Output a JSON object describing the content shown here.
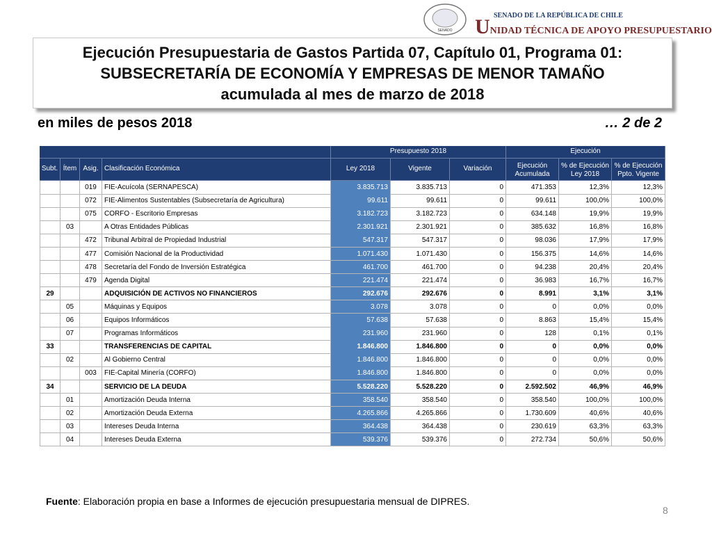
{
  "header": {
    "seal_text": "SENADO",
    "org_line1": "SENADO DE LA REPÚBLICA DE CHILE",
    "org_line2": "UNIDAD TÉCNICA DE APOYO PRESUPUESTARIO"
  },
  "title": [
    "Ejecución Presupuestaria de Gastos Partida 07, Capítulo 01, Programa 01:",
    "SUBSECRETARÍA DE ECONOMÍA Y EMPRESAS DE MENOR TAMAÑO",
    "acumulada al mes de marzo de 2018"
  ],
  "subtitle": "en miles de pesos 2018",
  "page_part": "… 2 de 2",
  "table": {
    "groups": [
      "Presupuesto 2018",
      "Ejecución"
    ],
    "columns": [
      [
        "Subt."
      ],
      [
        "Ítem"
      ],
      [
        "Asig."
      ],
      [
        "Clasificación Económica"
      ],
      [
        "Ley 2018"
      ],
      [
        "Vigente"
      ],
      [
        "Variación"
      ],
      [
        "Ejecución",
        "Acumulada"
      ],
      [
        "% de Ejecución",
        "Ley 2018"
      ],
      [
        "% de Ejecución",
        "Ppto. Vigente"
      ]
    ],
    "rows": [
      {
        "cells": [
          null,
          null,
          "019",
          "FIE-Acuícola (SERNAPESCA)",
          "3.835.713",
          "3.835.713",
          "0",
          "471.353",
          "12,3%",
          "12,3%"
        ]
      },
      {
        "cells": [
          null,
          null,
          "072",
          "FIE-Alimentos Sustentables (Subsecretaría de Agricultura)",
          "99.611",
          "99.611",
          "0",
          "99.611",
          "100,0%",
          "100,0%"
        ]
      },
      {
        "cells": [
          null,
          null,
          "075",
          "CORFO - Escritorio Empresas",
          "3.182.723",
          "3.182.723",
          "0",
          "634.148",
          "19,9%",
          "19,9%"
        ]
      },
      {
        "cells": [
          null,
          "03",
          null,
          "A Otras Entidades Públicas",
          "2.301.921",
          "2.301.921",
          "0",
          "385.632",
          "16,8%",
          "16,8%"
        ]
      },
      {
        "cells": [
          null,
          null,
          "472",
          "Tribunal Arbitral de Propiedad Industrial",
          "547.317",
          "547.317",
          "0",
          "98.036",
          "17,9%",
          "17,9%"
        ]
      },
      {
        "cells": [
          null,
          null,
          "477",
          "Comisión Nacional de la Productividad",
          "1.071.430",
          "1.071.430",
          "0",
          "156.375",
          "14,6%",
          "14,6%"
        ]
      },
      {
        "cells": [
          null,
          null,
          "478",
          "Secretaría del Fondo de Inversión Estratégica",
          "461.700",
          "461.700",
          "0",
          "94.238",
          "20,4%",
          "20,4%"
        ]
      },
      {
        "cells": [
          null,
          null,
          "479",
          "Agenda Digital",
          "221.474",
          "221.474",
          "0",
          "36.983",
          "16,7%",
          "16,7%"
        ]
      },
      {
        "cells": [
          "29",
          null,
          null,
          "ADQUISICIÓN DE ACTIVOS NO FINANCIEROS",
          "292.676",
          "292.676",
          "0",
          "8.991",
          "3,1%",
          "3,1%"
        ],
        "bold": true
      },
      {
        "cells": [
          null,
          "05",
          null,
          "Máquinas y Equipos",
          "3.078",
          "3.078",
          "0",
          "0",
          "0,0%",
          "0,0%"
        ]
      },
      {
        "cells": [
          null,
          "06",
          null,
          "Equipos Informáticos",
          "57.638",
          "57.638",
          "0",
          "8.863",
          "15,4%",
          "15,4%"
        ]
      },
      {
        "cells": [
          null,
          "07",
          null,
          "Programas Informáticos",
          "231.960",
          "231.960",
          "0",
          "128",
          "0,1%",
          "0,1%"
        ]
      },
      {
        "cells": [
          "33",
          null,
          null,
          "TRANSFERENCIAS DE CAPITAL",
          "1.846.800",
          "1.846.800",
          "0",
          "0",
          "0,0%",
          "0,0%"
        ],
        "bold": true
      },
      {
        "cells": [
          null,
          "02",
          null,
          "Al Gobierno Central",
          "1.846.800",
          "1.846.800",
          "0",
          "0",
          "0,0%",
          "0,0%"
        ]
      },
      {
        "cells": [
          null,
          null,
          "003",
          "FIE-Capital Minería (CORFO)",
          "1.846.800",
          "1.846.800",
          "0",
          "0",
          "0,0%",
          "0,0%"
        ]
      },
      {
        "cells": [
          "34",
          null,
          null,
          "SERVICIO DE LA DEUDA",
          "5.528.220",
          "5.528.220",
          "0",
          "2.592.502",
          "46,9%",
          "46,9%"
        ],
        "bold": true
      },
      {
        "cells": [
          null,
          "01",
          null,
          "Amortización Deuda Interna",
          "358.540",
          "358.540",
          "0",
          "358.540",
          "100,0%",
          "100,0%"
        ]
      },
      {
        "cells": [
          null,
          "02",
          null,
          "Amortización Deuda Externa",
          "4.265.866",
          "4.265.866",
          "0",
          "1.730.609",
          "40,6%",
          "40,6%"
        ]
      },
      {
        "cells": [
          null,
          "03",
          null,
          "Intereses Deuda Interna",
          "364.438",
          "364.438",
          "0",
          "230.619",
          "63,3%",
          "63,3%"
        ]
      },
      {
        "cells": [
          null,
          "04",
          null,
          "Intereses Deuda Externa",
          "539.376",
          "539.376",
          "0",
          "272.734",
          "50,6%",
          "50,6%"
        ]
      }
    ]
  },
  "footer": {
    "label": "Fuente",
    "text": ": Elaboración propia en base a Informes de ejecución presupuestaria mensual de DIPRES."
  },
  "page_number": "8"
}
